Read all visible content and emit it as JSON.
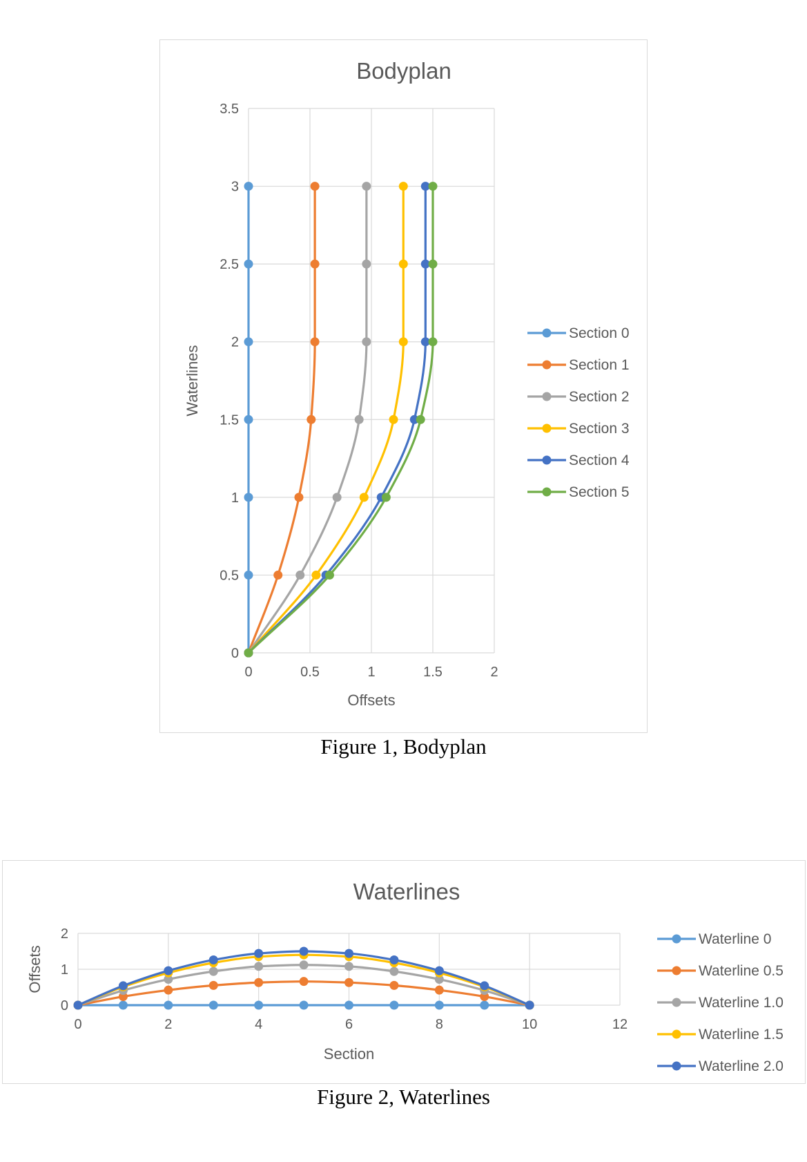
{
  "figures": [
    {
      "caption": "Figure 1, Bodyplan"
    },
    {
      "caption": "Figure 2, Waterlines"
    }
  ],
  "chart_data": [
    {
      "type": "line",
      "title": "Bodyplan",
      "xlabel": "Offsets",
      "ylabel": "Waterlines",
      "xlim": [
        0,
        2
      ],
      "ylim": [
        0,
        3.5
      ],
      "xticks": [
        "0",
        "0.5",
        "1",
        "1.5",
        "2"
      ],
      "yticks": [
        "0",
        "0.5",
        "1",
        "1.5",
        "2",
        "2.5",
        "3",
        "3.5"
      ],
      "grid": true,
      "legend_position": "right",
      "series": [
        {
          "name": "Section 0",
          "color": "#5B9BD5",
          "points": [
            [
              0,
              0
            ],
            [
              0,
              0.5
            ],
            [
              0,
              1
            ],
            [
              0,
              1.5
            ],
            [
              0,
              2
            ],
            [
              0,
              2.5
            ],
            [
              0,
              3
            ]
          ]
        },
        {
          "name": "Section 1",
          "color": "#ED7D31",
          "points": [
            [
              0,
              0
            ],
            [
              0.24,
              0.5
            ],
            [
              0.41,
              1
            ],
            [
              0.51,
              1.5
            ],
            [
              0.54,
              2
            ],
            [
              0.54,
              2.5
            ],
            [
              0.54,
              3
            ]
          ]
        },
        {
          "name": "Section 2",
          "color": "#A5A5A5",
          "points": [
            [
              0,
              0
            ],
            [
              0.42,
              0.5
            ],
            [
              0.72,
              1
            ],
            [
              0.9,
              1.5
            ],
            [
              0.96,
              2
            ],
            [
              0.96,
              2.5
            ],
            [
              0.96,
              3
            ]
          ]
        },
        {
          "name": "Section 3",
          "color": "#FFC000",
          "points": [
            [
              0,
              0
            ],
            [
              0.55,
              0.5
            ],
            [
              0.94,
              1
            ],
            [
              1.18,
              1.5
            ],
            [
              1.26,
              2
            ],
            [
              1.26,
              2.5
            ],
            [
              1.26,
              3
            ]
          ]
        },
        {
          "name": "Section 4",
          "color": "#4472C4",
          "points": [
            [
              0,
              0
            ],
            [
              0.63,
              0.5
            ],
            [
              1.08,
              1
            ],
            [
              1.35,
              1.5
            ],
            [
              1.44,
              2
            ],
            [
              1.44,
              2.5
            ],
            [
              1.44,
              3
            ]
          ]
        },
        {
          "name": "Section 5",
          "color": "#70AD47",
          "points": [
            [
              0,
              0
            ],
            [
              0.66,
              0.5
            ],
            [
              1.12,
              1
            ],
            [
              1.4,
              1.5
            ],
            [
              1.5,
              2
            ],
            [
              1.5,
              2.5
            ],
            [
              1.5,
              3
            ]
          ]
        }
      ]
    },
    {
      "type": "line",
      "title": "Waterlines",
      "xlabel": "Section",
      "ylabel": "Offsets",
      "xlim": [
        0,
        12
      ],
      "ylim": [
        0,
        2
      ],
      "xticks": [
        "0",
        "2",
        "4",
        "6",
        "8",
        "10",
        "12"
      ],
      "yticks": [
        "0",
        "1",
        "2"
      ],
      "grid": true,
      "legend_position": "right",
      "series": [
        {
          "name": "Waterline 0",
          "color": "#5B9BD5",
          "points": [
            [
              0,
              0
            ],
            [
              1,
              0
            ],
            [
              2,
              0
            ],
            [
              3,
              0
            ],
            [
              4,
              0
            ],
            [
              5,
              0
            ],
            [
              6,
              0
            ],
            [
              7,
              0
            ],
            [
              8,
              0
            ],
            [
              9,
              0
            ],
            [
              10,
              0
            ]
          ]
        },
        {
          "name": "Waterline 0.5",
          "color": "#ED7D31",
          "points": [
            [
              0,
              0
            ],
            [
              1,
              0.24
            ],
            [
              2,
              0.42
            ],
            [
              3,
              0.55
            ],
            [
              4,
              0.63
            ],
            [
              5,
              0.66
            ],
            [
              6,
              0.63
            ],
            [
              7,
              0.55
            ],
            [
              8,
              0.42
            ],
            [
              9,
              0.24
            ],
            [
              10,
              0
            ]
          ]
        },
        {
          "name": "Waterline 1.0",
          "color": "#A5A5A5",
          "points": [
            [
              0,
              0
            ],
            [
              1,
              0.41
            ],
            [
              2,
              0.72
            ],
            [
              3,
              0.94
            ],
            [
              4,
              1.08
            ],
            [
              5,
              1.12
            ],
            [
              6,
              1.08
            ],
            [
              7,
              0.94
            ],
            [
              8,
              0.72
            ],
            [
              9,
              0.41
            ],
            [
              10,
              0
            ]
          ]
        },
        {
          "name": "Waterline 1.5",
          "color": "#FFC000",
          "points": [
            [
              0,
              0
            ],
            [
              1,
              0.51
            ],
            [
              2,
              0.9
            ],
            [
              3,
              1.18
            ],
            [
              4,
              1.35
            ],
            [
              5,
              1.4
            ],
            [
              6,
              1.35
            ],
            [
              7,
              1.18
            ],
            [
              8,
              0.9
            ],
            [
              9,
              0.51
            ],
            [
              10,
              0
            ]
          ]
        },
        {
          "name": "Waterline 2.0",
          "color": "#4472C4",
          "points": [
            [
              0,
              0
            ],
            [
              1,
              0.54
            ],
            [
              2,
              0.96
            ],
            [
              3,
              1.26
            ],
            [
              4,
              1.44
            ],
            [
              5,
              1.5
            ],
            [
              6,
              1.44
            ],
            [
              7,
              1.26
            ],
            [
              8,
              0.96
            ],
            [
              9,
              0.54
            ],
            [
              10,
              0
            ]
          ]
        }
      ]
    }
  ]
}
